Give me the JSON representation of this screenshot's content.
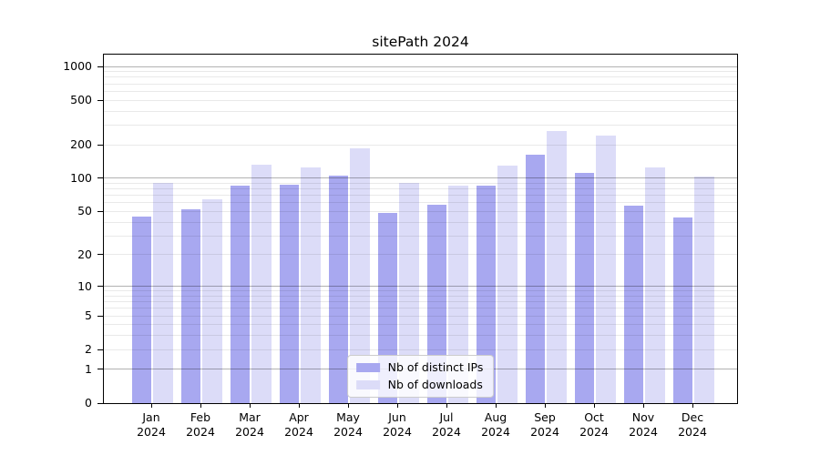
{
  "chart_data": {
    "type": "bar",
    "title": "sitePath 2024",
    "categories": [
      "Jan",
      "Feb",
      "Mar",
      "Apr",
      "May",
      "Jun",
      "Jul",
      "Aug",
      "Sep",
      "Oct",
      "Nov",
      "Dec"
    ],
    "category_year": "2024",
    "series": [
      {
        "name": "Nb of distinct IPs",
        "color": "#a8a8f0",
        "values": [
          45,
          52,
          86,
          88,
          105,
          49,
          58,
          85,
          163,
          111,
          57,
          44
        ]
      },
      {
        "name": "Nb of downloads",
        "color": "#dcdcf8",
        "values": [
          90,
          64,
          132,
          125,
          187,
          91,
          86,
          129,
          263,
          240,
          125,
          103
        ]
      }
    ],
    "yscale": "log1p",
    "ylim": [
      0,
      1300
    ],
    "yticks": [
      0,
      1,
      2,
      5,
      10,
      20,
      50,
      100,
      200,
      500,
      1000
    ],
    "grid": "major and minor horizontal gridlines",
    "legend_position": "lower center",
    "colors": {
      "major_grid": "#b3b3b3",
      "minor_grid": "#e9e9e9",
      "axis": "#000000",
      "background": "#ffffff"
    }
  }
}
